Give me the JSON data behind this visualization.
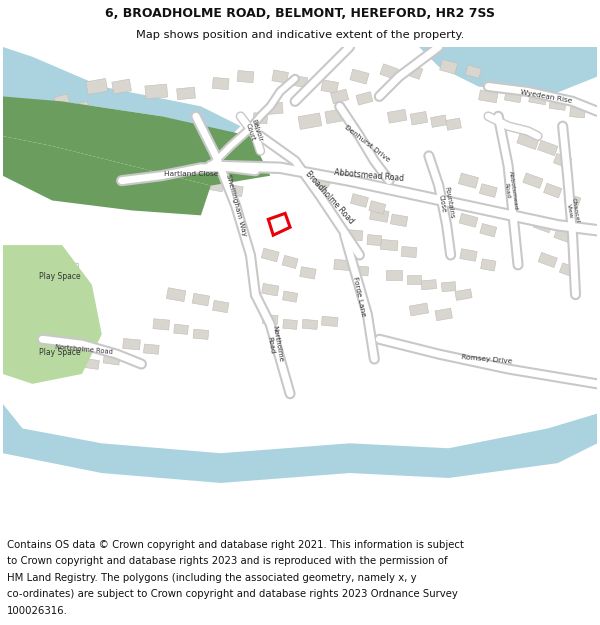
{
  "title_line1": "6, BROADHOLME ROAD, BELMONT, HEREFORD, HR2 7SS",
  "title_line2": "Map shows position and indicative extent of the property.",
  "footer_lines": [
    "Contains OS data © Crown copyright and database right 2021. This information is subject",
    "to Crown copyright and database rights 2023 and is reproduced with the permission of",
    "HM Land Registry. The polygons (including the associated geometry, namely x, y",
    "co-ordinates) are subject to Crown copyright and database rights 2023 Ordnance Survey",
    "100026316."
  ],
  "bg_color": "#f7f5f2",
  "road_fill": "#ffffff",
  "road_edge": "#c8c8c8",
  "building_fill": "#d9d6cf",
  "building_edge": "#c0bdb6",
  "water_color": "#aad3df",
  "green_dark": "#6b9e5e",
  "green_light": "#b8d9a0",
  "highlight_color": "#e8000a",
  "text_color": "#333333",
  "title_fontsize": 9.0,
  "subtitle_fontsize": 8.2,
  "footer_fontsize": 7.3,
  "label_fontsize": 5.5
}
